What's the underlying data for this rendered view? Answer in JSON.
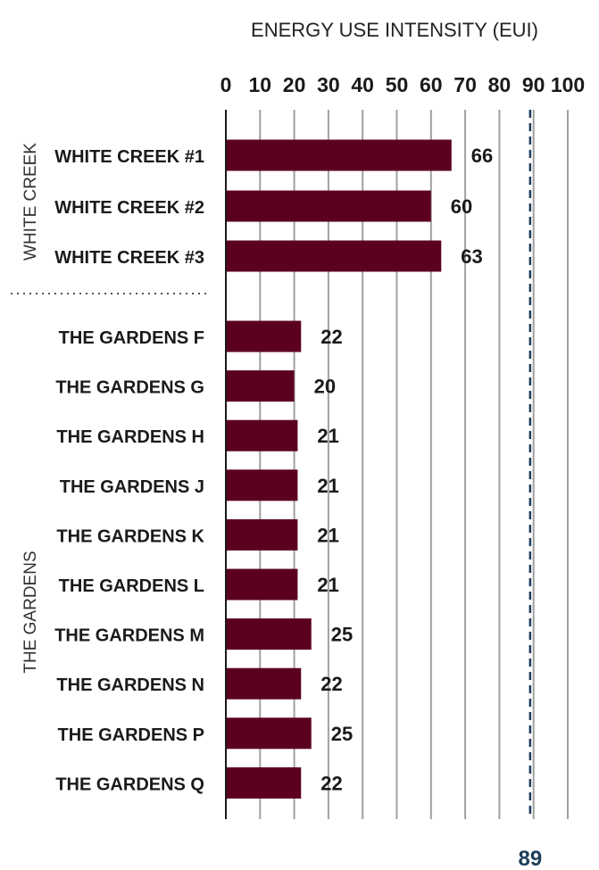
{
  "chart_data": {
    "type": "bar",
    "orientation": "horizontal",
    "title": "ENERGY USE INTENSITY (EUI)",
    "xlabel": "",
    "ylabel": "",
    "xlim": [
      0,
      100
    ],
    "x_ticks": [
      "0",
      "10",
      "20",
      "30",
      "40",
      "50",
      "60",
      "70",
      "80",
      "90",
      "100"
    ],
    "grid": "vertical",
    "tick_position": "top",
    "groups": [
      {
        "name": "WHITE CREEK",
        "categories": [
          "WHITE CREEK #1",
          "WHITE CREEK #2",
          "WHITE CREEK #3"
        ],
        "values": [
          66,
          60,
          63
        ]
      },
      {
        "name": "THE GARDENS",
        "categories": [
          "THE GARDENS F",
          "THE GARDENS G",
          "THE GARDENS H",
          "THE GARDENS J",
          "THE GARDENS K",
          "THE GARDENS L",
          "THE GARDENS M",
          "THE GARDENS N",
          "THE GARDENS P",
          "THE GARDENS Q"
        ],
        "values": [
          22,
          20,
          21,
          21,
          21,
          21,
          25,
          22,
          25,
          22
        ]
      }
    ],
    "reference_line": {
      "value": 89,
      "label": "89",
      "style": "dashed",
      "color": "#1f3d5c"
    },
    "colors": {
      "bar": "#5c0022",
      "grid": "#a0a0a0",
      "axis": "#1a1a1a",
      "separator": "#555555"
    }
  }
}
